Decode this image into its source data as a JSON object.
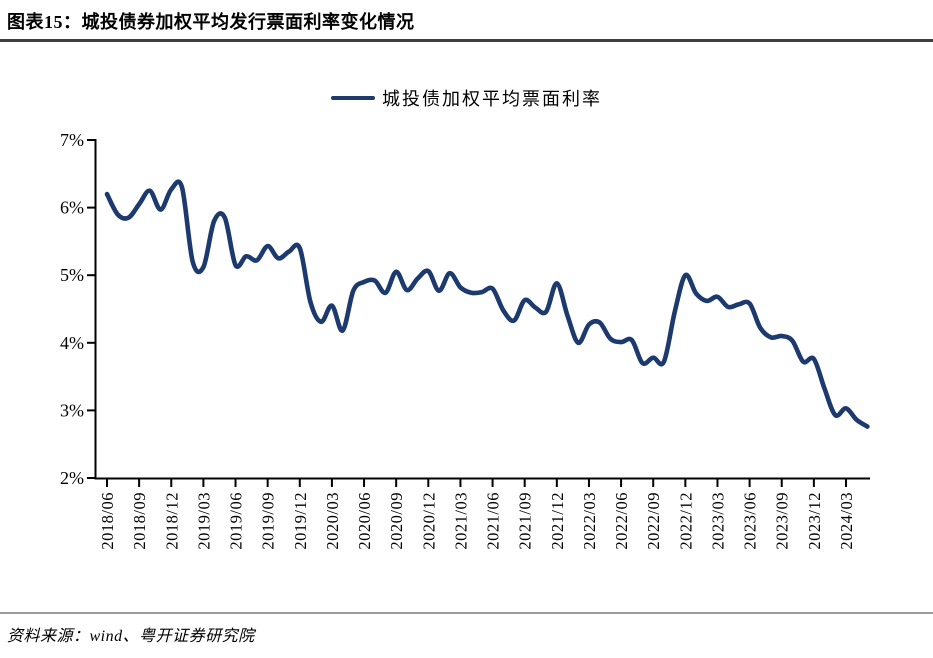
{
  "page": {
    "title": "图表15：城投债券加权平均发行票面利率变化情况",
    "source": "资料来源：wind、粤开证券研究院"
  },
  "colors": {
    "line": "#1C3A6E",
    "axis": "#000000",
    "header_rule": "#3f3f3f",
    "footer_rule": "#9b9b9b"
  },
  "chart_data": {
    "type": "line",
    "title": "城投债券加权平均发行票面利率变化情况",
    "legend_position": "top-center",
    "grid": false,
    "ylim": [
      2,
      7
    ],
    "y_ticks": [
      7,
      6,
      5,
      4,
      3,
      2
    ],
    "y_tick_suffix": "%",
    "x_tick_every": 3,
    "x": [
      "2018/06",
      "2018/07",
      "2018/08",
      "2018/09",
      "2018/10",
      "2018/11",
      "2018/12",
      "2019/01",
      "2019/02",
      "2019/03",
      "2019/04",
      "2019/05",
      "2019/06",
      "2019/07",
      "2019/08",
      "2019/09",
      "2019/10",
      "2019/11",
      "2019/12",
      "2020/01",
      "2020/02",
      "2020/03",
      "2020/04",
      "2020/05",
      "2020/06",
      "2020/07",
      "2020/08",
      "2020/09",
      "2020/10",
      "2020/11",
      "2020/12",
      "2021/01",
      "2021/02",
      "2021/03",
      "2021/04",
      "2021/05",
      "2021/06",
      "2021/07",
      "2021/08",
      "2021/09",
      "2021/10",
      "2021/11",
      "2021/12",
      "2022/01",
      "2022/02",
      "2022/03",
      "2022/04",
      "2022/05",
      "2022/06",
      "2022/07",
      "2022/08",
      "2022/09",
      "2022/10",
      "2022/11",
      "2022/12",
      "2023/01",
      "2023/02",
      "2023/03",
      "2023/04",
      "2023/05",
      "2023/06",
      "2023/07",
      "2023/08",
      "2023/09",
      "2023/10",
      "2023/11",
      "2023/12",
      "2024/01",
      "2024/02",
      "2024/03",
      "2024/04",
      "2024/05"
    ],
    "series": [
      {
        "name": "城投债加权平均票面利率",
        "color": "#1C3A6E",
        "values": [
          6.2,
          5.9,
          5.85,
          6.05,
          6.25,
          5.97,
          6.27,
          6.3,
          5.2,
          5.12,
          5.8,
          5.85,
          5.15,
          5.28,
          5.22,
          5.43,
          5.25,
          5.35,
          5.4,
          4.6,
          4.31,
          4.55,
          4.18,
          4.77,
          4.9,
          4.92,
          4.74,
          5.05,
          4.78,
          4.95,
          5.06,
          4.77,
          5.03,
          4.82,
          4.74,
          4.75,
          4.8,
          4.48,
          4.33,
          4.63,
          4.52,
          4.46,
          4.88,
          4.4,
          4.0,
          4.27,
          4.3,
          4.06,
          4.01,
          4.04,
          3.7,
          3.78,
          3.72,
          4.45,
          5.0,
          4.73,
          4.62,
          4.68,
          4.53,
          4.57,
          4.58,
          4.22,
          4.08,
          4.1,
          4.03,
          3.72,
          3.76,
          3.32,
          2.93,
          3.03,
          2.86,
          2.76
        ]
      }
    ]
  }
}
